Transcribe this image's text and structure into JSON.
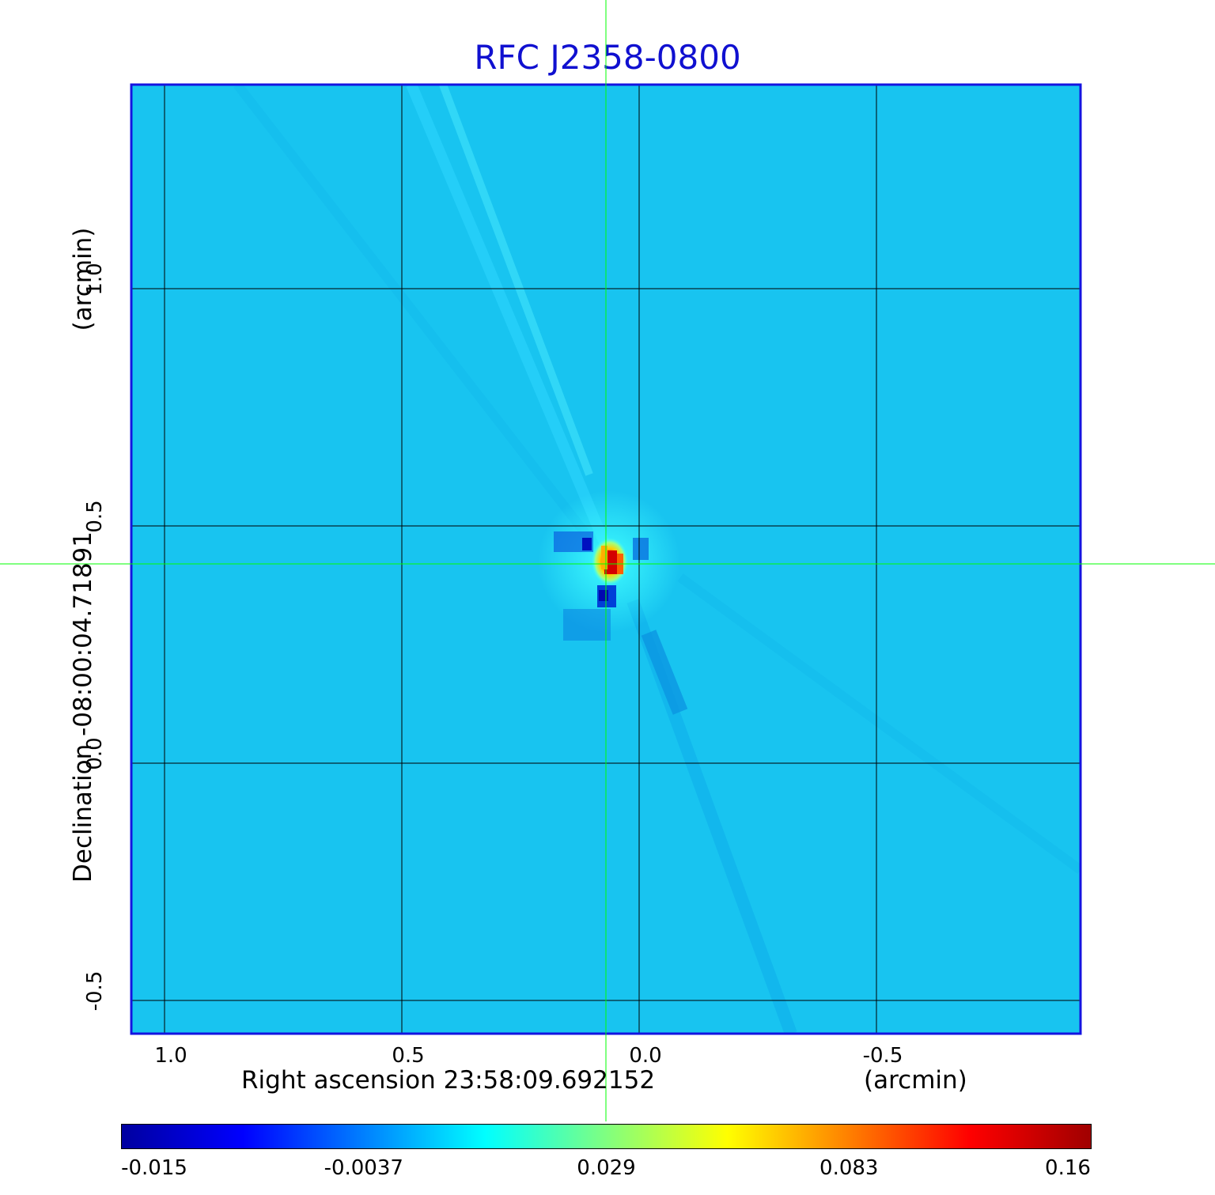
{
  "chart_data": {
    "type": "heatmap",
    "title": "RFC J2358-0800",
    "xlabel": "Right ascension  23:58:09.692152",
    "xunit": "(arcmin)",
    "ylabel": "Declination  -08:00:04.71891",
    "yunit": "(arcmin)",
    "x_ticks": [
      {
        "value": 1.0,
        "label": "1.0"
      },
      {
        "value": 0.5,
        "label": "0.5"
      },
      {
        "value": 0.0,
        "label": "0.0"
      },
      {
        "value": -0.5,
        "label": "-0.5"
      }
    ],
    "y_ticks": [
      {
        "value": 1.0,
        "label": "1.0"
      },
      {
        "value": 0.5,
        "label": "0.5"
      },
      {
        "value": 0.0,
        "label": "0.0"
      },
      {
        "value": -0.5,
        "label": "-0.5"
      }
    ],
    "xlim": [
      1.07,
      -0.93
    ],
    "ylim": [
      -0.57,
      1.43
    ],
    "grid": true,
    "crosshair": {
      "x": 0.07,
      "y": 0.42
    },
    "peak": {
      "x": 0.06,
      "y": 0.41,
      "value": 0.16
    },
    "colorbar": {
      "min": -0.015,
      "max": 0.16,
      "tick_labels": [
        "-0.015",
        "-0.0037",
        "0.029",
        "0.083",
        "0.16"
      ],
      "colors": [
        "#0000a0",
        "#0000ff",
        "#0080ff",
        "#00ffff",
        "#80ff80",
        "#ffff00",
        "#ff8000",
        "#ff0000",
        "#a00000"
      ]
    },
    "colors": {
      "title": "#1010d0",
      "frame": "#1414e0",
      "background_field": "#18c4f0",
      "crosshair": "#00ff00",
      "grid": "#000000"
    }
  }
}
